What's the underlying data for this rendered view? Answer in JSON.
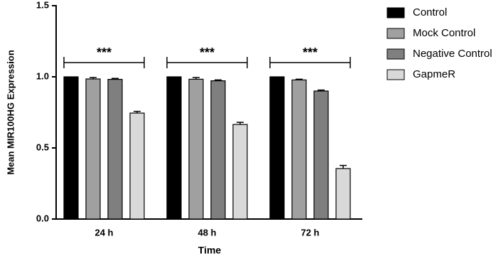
{
  "chart_data": {
    "type": "bar",
    "x_label": "Time",
    "y_label": "Mean MIR100HG Expression",
    "categories": [
      "24 h",
      "48 h",
      "72 h"
    ],
    "series": [
      {
        "name": "Control",
        "color": "#000000",
        "values": [
          1.0,
          1.0,
          1.0
        ],
        "errors": [
          0,
          0,
          0
        ]
      },
      {
        "name": "Mock Control",
        "color": "#a0a0a0",
        "values": [
          0.985,
          0.983,
          0.978
        ],
        "errors": [
          0.01,
          0.012,
          0.005
        ]
      },
      {
        "name": "Negative Control",
        "color": "#7f7f7f",
        "values": [
          0.982,
          0.972,
          0.9
        ],
        "errors": [
          0.007,
          0.006,
          0.007
        ]
      },
      {
        "name": "GapmeR",
        "color": "#d9d9d9",
        "values": [
          0.745,
          0.665,
          0.355
        ],
        "errors": [
          0.012,
          0.015,
          0.022
        ]
      }
    ],
    "significance": [
      "***",
      "***",
      "***"
    ],
    "ylim": [
      0,
      1.5
    ],
    "yticks": [
      {
        "value": 0,
        "label": "0.0"
      },
      {
        "value": 0.5,
        "label": "0.5"
      },
      {
        "value": 1,
        "label": "1.0"
      },
      {
        "value": 1.5,
        "label": "1.5"
      }
    ],
    "legend": "right"
  }
}
